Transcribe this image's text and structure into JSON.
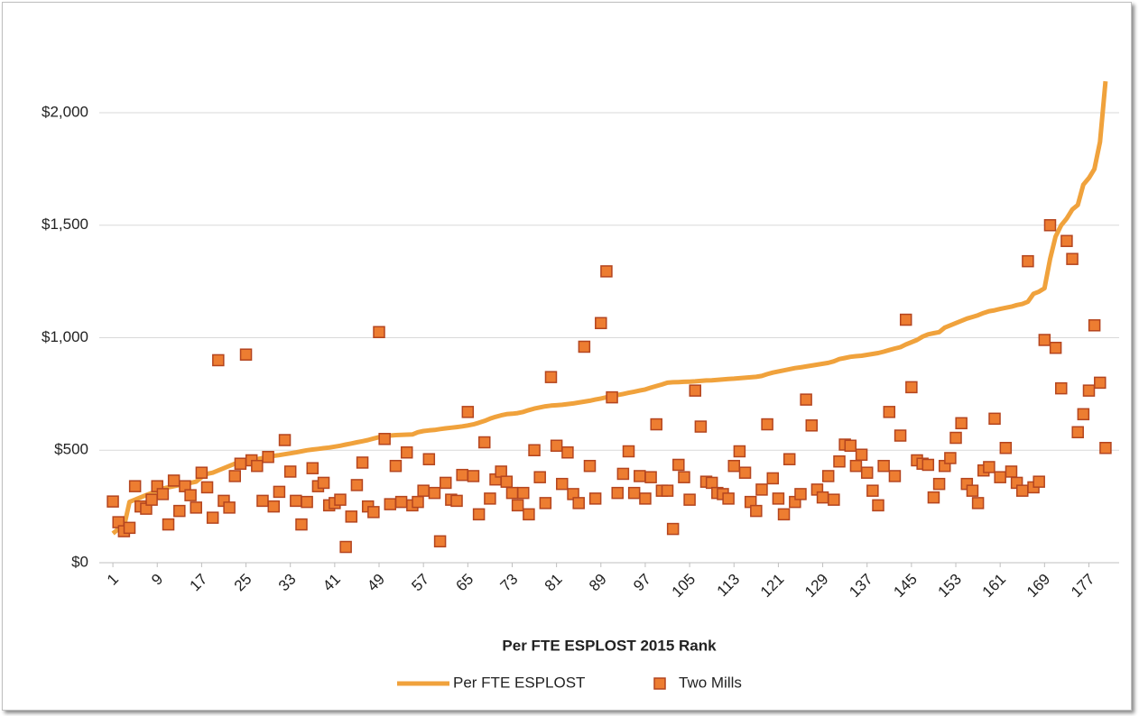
{
  "chart_data": {
    "type": "combo",
    "x_label": "Per FTE ESPLOST 2015 Rank",
    "x": [
      1,
      2,
      3,
      4,
      5,
      6,
      7,
      8,
      9,
      10,
      11,
      12,
      13,
      14,
      15,
      16,
      17,
      18,
      19,
      20,
      21,
      22,
      23,
      24,
      25,
      26,
      27,
      28,
      29,
      30,
      31,
      32,
      33,
      34,
      35,
      36,
      37,
      38,
      39,
      40,
      41,
      42,
      43,
      44,
      45,
      46,
      47,
      48,
      49,
      50,
      51,
      52,
      53,
      54,
      55,
      56,
      57,
      58,
      59,
      60,
      61,
      62,
      63,
      64,
      65,
      66,
      67,
      68,
      69,
      70,
      71,
      72,
      73,
      74,
      75,
      76,
      77,
      78,
      79,
      80,
      81,
      82,
      83,
      84,
      85,
      86,
      87,
      88,
      89,
      90,
      91,
      92,
      93,
      94,
      95,
      96,
      97,
      98,
      99,
      100,
      101,
      102,
      103,
      104,
      105,
      106,
      107,
      108,
      109,
      110,
      111,
      112,
      113,
      114,
      115,
      116,
      117,
      118,
      119,
      120,
      121,
      122,
      123,
      124,
      125,
      126,
      127,
      128,
      129,
      130,
      131,
      132,
      133,
      134,
      135,
      136,
      137,
      138,
      139,
      140,
      141,
      142,
      143,
      144,
      145,
      146,
      147,
      148,
      149,
      150,
      151,
      152,
      153,
      154,
      155,
      156,
      157,
      158,
      159,
      160,
      161,
      162,
      163,
      164,
      165,
      166,
      167,
      168,
      169,
      170,
      171,
      172,
      173,
      174,
      175,
      176,
      177,
      178,
      179,
      180
    ],
    "xlim": [
      0.5,
      180.5
    ],
    "xticks": [
      1,
      9,
      17,
      25,
      33,
      41,
      49,
      57,
      65,
      73,
      81,
      89,
      97,
      105,
      113,
      121,
      129,
      137,
      145,
      153,
      161,
      169,
      177
    ],
    "ylim": [
      0,
      2200
    ],
    "yticks": [
      {
        "value": 0,
        "label": "$0"
      },
      {
        "value": 500,
        "label": "$500"
      },
      {
        "value": 1000,
        "label": "$1,000"
      },
      {
        "value": 1500,
        "label": "$1,500"
      },
      {
        "value": 2000,
        "label": "$2,000"
      }
    ],
    "grid": true,
    "legend": "bottom",
    "series": [
      {
        "name": "Per FTE ESPLOST",
        "type": "line",
        "color": "#F0A23C",
        "values": [
          130,
          150,
          160,
          270,
          280,
          290,
          300,
          310,
          320,
          330,
          335,
          340,
          345,
          350,
          355,
          360,
          380,
          395,
          400,
          410,
          420,
          430,
          440,
          445,
          450,
          455,
          460,
          465,
          470,
          475,
          478,
          482,
          486,
          490,
          495,
          500,
          503,
          506,
          509,
          512,
          516,
          520,
          525,
          530,
          535,
          540,
          545,
          552,
          558,
          562,
          565,
          567,
          568,
          569,
          570,
          580,
          585,
          588,
          590,
          594,
          597,
          600,
          603,
          606,
          610,
          615,
          622,
          630,
          640,
          648,
          655,
          660,
          662,
          665,
          670,
          678,
          685,
          690,
          695,
          698,
          700,
          702,
          705,
          708,
          712,
          716,
          720,
          725,
          730,
          735,
          740,
          745,
          750,
          755,
          760,
          765,
          770,
          778,
          785,
          792,
          800,
          802,
          803,
          804,
          805,
          806,
          808,
          810,
          811,
          813,
          815,
          817,
          818,
          820,
          822,
          824,
          826,
          830,
          838,
          845,
          850,
          855,
          860,
          865,
          868,
          872,
          876,
          880,
          884,
          888,
          895,
          905,
          910,
          915,
          918,
          920,
          924,
          928,
          932,
          938,
          945,
          952,
          958,
          970,
          980,
          990,
          1005,
          1015,
          1020,
          1025,
          1045,
          1055,
          1065,
          1075,
          1085,
          1092,
          1100,
          1110,
          1118,
          1122,
          1128,
          1133,
          1138,
          1145,
          1150,
          1160,
          1195,
          1205,
          1220,
          1350,
          1450,
          1500,
          1530,
          1570,
          1590,
          1680,
          1710,
          1750,
          1870,
          2140
        ]
      },
      {
        "name": "Two Mills",
        "type": "scatter",
        "color": "#ED7D31",
        "edge_color": "#B4451F",
        "values": [
          272,
          180,
          140,
          155,
          340,
          250,
          240,
          280,
          340,
          305,
          170,
          365,
          230,
          340,
          300,
          245,
          400,
          335,
          200,
          900,
          275,
          245,
          385,
          440,
          925,
          455,
          430,
          275,
          470,
          250,
          315,
          545,
          405,
          275,
          170,
          270,
          420,
          340,
          355,
          255,
          265,
          280,
          70,
          205,
          345,
          445,
          250,
          225,
          1025,
          550,
          260,
          430,
          270,
          490,
          255,
          270,
          320,
          460,
          310,
          95,
          355,
          280,
          275,
          390,
          670,
          385,
          215,
          535,
          285,
          370,
          405,
          360,
          310,
          255,
          310,
          215,
          500,
          380,
          265,
          825,
          520,
          350,
          490,
          305,
          265,
          960,
          430,
          285,
          1065,
          1295,
          735,
          310,
          395,
          495,
          310,
          385,
          285,
          380,
          615,
          320,
          320,
          150,
          435,
          380,
          280,
          765,
          605,
          360,
          355,
          310,
          305,
          285,
          430,
          495,
          400,
          270,
          230,
          325,
          615,
          375,
          285,
          215,
          460,
          270,
          305,
          725,
          610,
          325,
          290,
          385,
          280,
          450,
          525,
          520,
          430,
          480,
          400,
          320,
          255,
          430,
          670,
          385,
          565,
          1080,
          780,
          455,
          440,
          435,
          290,
          350,
          430,
          465,
          555,
          620,
          350,
          320,
          265,
          410,
          425,
          640,
          380,
          510,
          405,
          355,
          320,
          1340,
          335,
          360,
          990,
          1500,
          955,
          775,
          1430,
          1350,
          580,
          660,
          765,
          1055,
          800,
          510
        ]
      }
    ]
  }
}
